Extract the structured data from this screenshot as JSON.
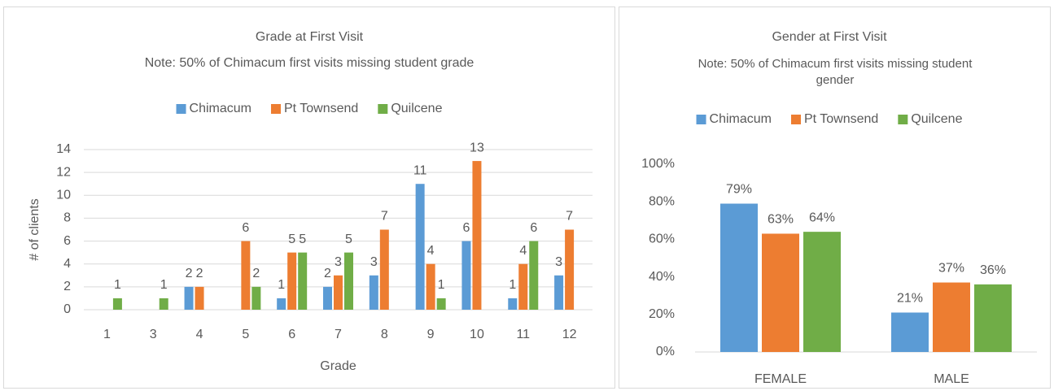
{
  "chart_data": [
    {
      "type": "bar",
      "title": "Grade at First Visit",
      "subtitle": "Note: 50% of Chimacum first visits missing student grade",
      "x_label": "Grade",
      "y_label": "# of clients",
      "categories": [
        "1",
        "3",
        "4",
        "5",
        "6",
        "7",
        "8",
        "9",
        "10",
        "11",
        "12"
      ],
      "series": [
        {
          "name": "Chimacum",
          "color": "#5b9bd5",
          "values": [
            null,
            null,
            2,
            null,
            1,
            2,
            3,
            11,
            6,
            1,
            3
          ]
        },
        {
          "name": "Pt Townsend",
          "color": "#ed7d31",
          "values": [
            null,
            null,
            2,
            6,
            5,
            3,
            7,
            4,
            13,
            4,
            7
          ]
        },
        {
          "name": "Quilcene",
          "color": "#70ad47",
          "values": [
            1,
            1,
            null,
            2,
            5,
            5,
            null,
            1,
            null,
            6,
            null
          ]
        }
      ],
      "ylim": [
        0,
        14
      ],
      "yticks": [
        0,
        2,
        4,
        6,
        8,
        10,
        12,
        14
      ],
      "grid": true,
      "legend": "top"
    },
    {
      "type": "bar",
      "title": "Gender at First Visit",
      "subtitle": "Note: 50% of Chimacum first visits missing student gender",
      "categories": [
        "FEMALE",
        "MALE"
      ],
      "series": [
        {
          "name": "Chimacum",
          "color": "#5b9bd5",
          "values": [
            79,
            21
          ],
          "value_labels": [
            "79%",
            "21%"
          ]
        },
        {
          "name": "Pt Townsend",
          "color": "#ed7d31",
          "values": [
            63,
            37
          ],
          "value_labels": [
            "63%",
            "37%"
          ]
        },
        {
          "name": "Quilcene",
          "color": "#70ad47",
          "values": [
            64,
            36
          ],
          "value_labels": [
            "64%",
            "36%"
          ]
        }
      ],
      "ylim": [
        0,
        100
      ],
      "yticks": [
        {
          "value": 0,
          "label": "0%"
        },
        {
          "value": 20,
          "label": "20%"
        },
        {
          "value": 40,
          "label": "40%"
        },
        {
          "value": 60,
          "label": "60%"
        },
        {
          "value": 80,
          "label": "80%"
        },
        {
          "value": 100,
          "label": "100%"
        }
      ],
      "grid": false,
      "legend": "top"
    }
  ]
}
